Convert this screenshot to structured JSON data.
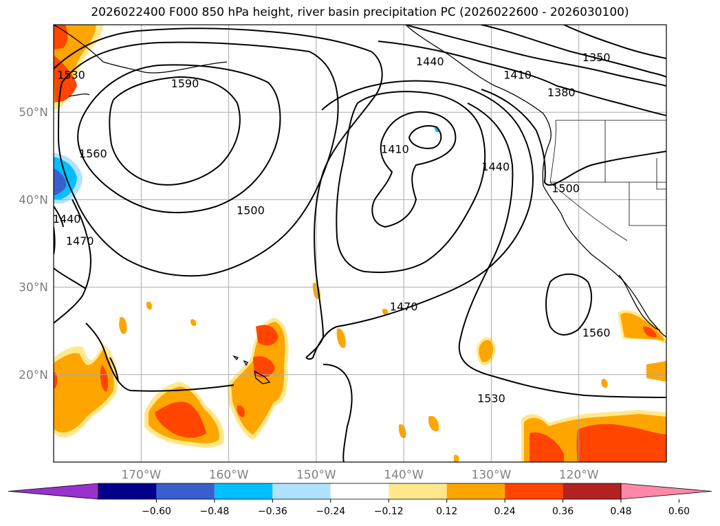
{
  "title": "2026022400 F000 850 hPa height, river basin precipitation PC (2026022600 - 2026030100)",
  "map": {
    "lat_labels": [
      {
        "text": "50°N",
        "lat": 50
      },
      {
        "text": "40°N",
        "lat": 40
      },
      {
        "text": "30°N",
        "lat": 30
      },
      {
        "text": "20°N",
        "lat": 20
      }
    ],
    "lon_labels": [
      {
        "text": "170°W",
        "lon": -170
      },
      {
        "text": "160°W",
        "lon": -160
      },
      {
        "text": "150°W",
        "lon": -150
      },
      {
        "text": "140°W",
        "lon": -140
      },
      {
        "text": "130°W",
        "lon": -130
      },
      {
        "text": "120°W",
        "lon": -120
      }
    ],
    "extent": {
      "lon_min": -180,
      "lon_max": -110,
      "lat_min": 10,
      "lat_max": 60
    },
    "contour_labels": [
      {
        "text": "1530",
        "lon": -178.0,
        "lat": 54.0
      },
      {
        "text": "1590",
        "lon": -165.0,
        "lat": 53.0
      },
      {
        "text": "1560",
        "lon": -175.5,
        "lat": 45.0
      },
      {
        "text": "1440",
        "lon": -178.5,
        "lat": 37.5
      },
      {
        "text": "1470",
        "lon": -177.0,
        "lat": 35.0
      },
      {
        "text": "1500",
        "lon": -157.5,
        "lat": 38.5
      },
      {
        "text": "1410",
        "lon": -141.0,
        "lat": 45.5
      },
      {
        "text": "1440",
        "lon": -129.5,
        "lat": 43.5
      },
      {
        "text": "1470",
        "lon": -140.0,
        "lat": 27.5
      },
      {
        "text": "1560",
        "lon": -118.0,
        "lat": 24.5
      },
      {
        "text": "1530",
        "lon": -130.0,
        "lat": 17.0
      },
      {
        "text": "1440",
        "lon": -137.0,
        "lat": 55.5
      },
      {
        "text": "1410",
        "lon": -127.0,
        "lat": 54.0
      },
      {
        "text": "1380",
        "lon": -122.0,
        "lat": 52.0
      },
      {
        "text": "1350",
        "lon": -118.0,
        "lat": 56.0
      },
      {
        "text": "1500",
        "lon": -121.5,
        "lat": 41.0
      }
    ]
  },
  "colorbar": {
    "colors": [
      "#9932cc",
      "#00008b",
      "#3a5fcd",
      "#00bfff",
      "#b0e2ff",
      "#ffffff",
      "#ffe88c",
      "#ffa500",
      "#ff4500",
      "#b22222",
      "#ff88a8"
    ],
    "ticks": [
      "−0.60",
      "−0.48",
      "−0.36",
      "−0.24",
      "−0.12",
      "0.12",
      "0.24",
      "0.36",
      "0.48",
      "0.60"
    ]
  }
}
